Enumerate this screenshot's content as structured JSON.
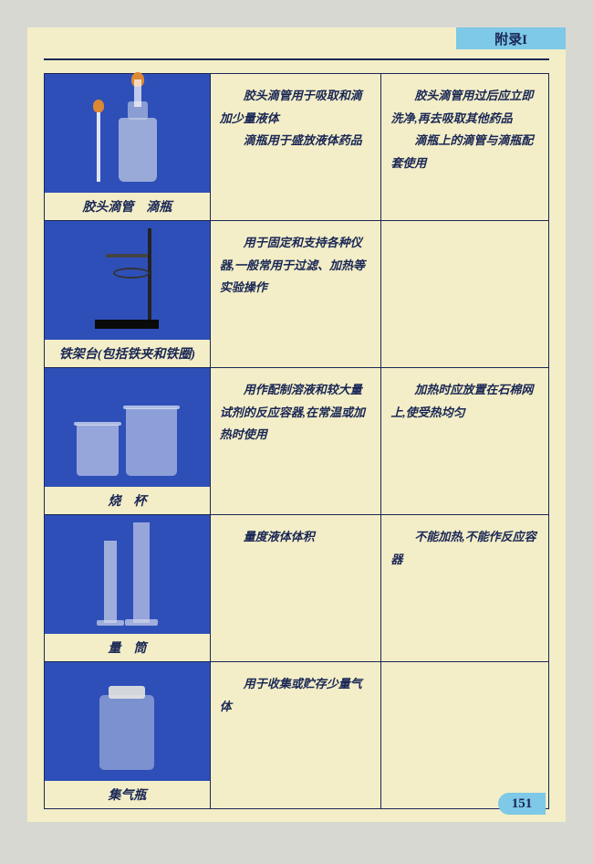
{
  "header_tab": "附录I",
  "page_number": "151",
  "rows": [
    {
      "label": "胶头滴管　滴瓶",
      "desc": "　　胶头滴管用于吸取和滴加少量液体\n　　滴瓶用于盛放液体药品",
      "note": "　　胶头滴管用过后应立即洗净,再去吸取其他药品\n　　滴瓶上的滴管与滴瓶配套使用"
    },
    {
      "label": "铁架台(包括铁夹和铁圈)",
      "desc": "　　用于固定和支持各种仪器,一般常用于过滤、加热等实验操作",
      "note": ""
    },
    {
      "label": "烧　杯",
      "desc": "　　用作配制溶液和较大量试剂的反应容器,在常温或加热时使用",
      "note": "　　加热时应放置在石棉网上,使受热均匀"
    },
    {
      "label": "量　筒",
      "desc": "　　量度液体体积",
      "note": "　　不能加热,不能作反应容器"
    },
    {
      "label": "集气瓶",
      "desc": "　　用于收集或贮存少量气体",
      "note": ""
    }
  ]
}
